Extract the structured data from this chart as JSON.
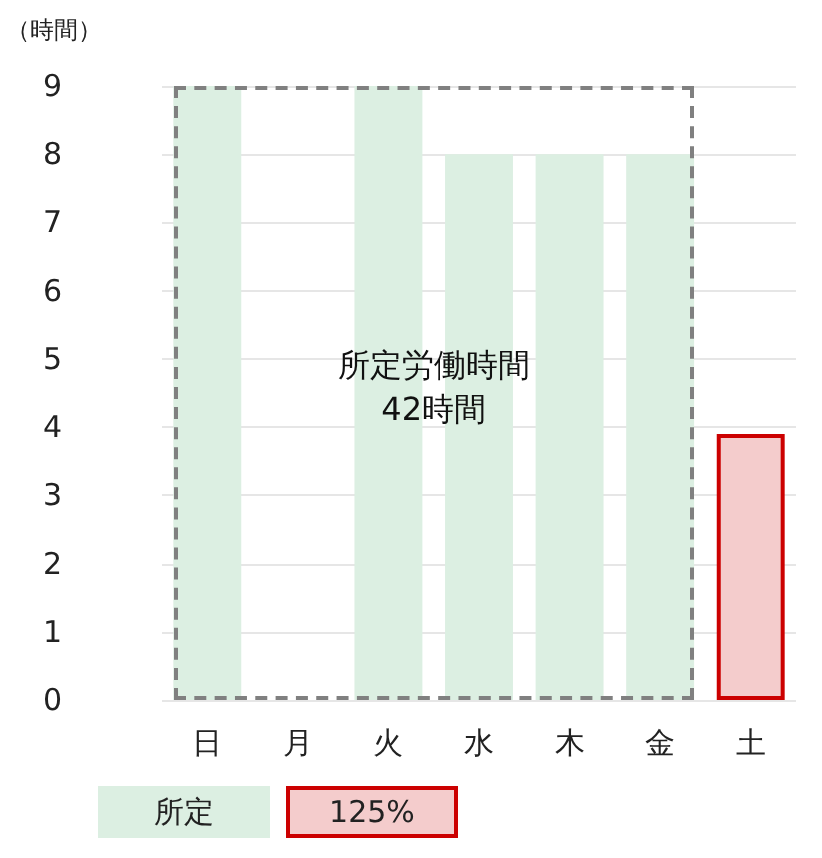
{
  "chart_data": {
    "type": "bar",
    "ylabel": "（時間）",
    "categories": [
      "日",
      "月",
      "火",
      "水",
      "木",
      "金",
      "土"
    ],
    "series": [
      {
        "name": "所定",
        "color": "#dcefe2",
        "values": [
          9,
          0,
          9,
          8,
          8,
          8,
          null
        ]
      },
      {
        "name": "125%",
        "color": "#f4cccc",
        "values": [
          null,
          null,
          null,
          null,
          null,
          null,
          3.9
        ]
      }
    ],
    "stacked": true,
    "ylim": [
      0,
      9
    ],
    "yticks": [
      0,
      1,
      2,
      3,
      4,
      5,
      6,
      7,
      8,
      9
    ],
    "grid": "y",
    "legend": "bottom left",
    "annotations": [
      "所定労働時間\n42時間"
    ]
  }
}
